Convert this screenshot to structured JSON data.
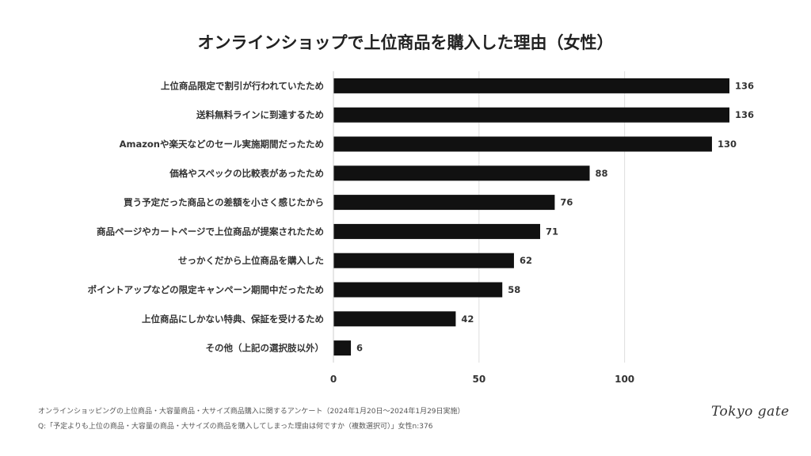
{
  "chart_data": {
    "type": "bar",
    "orientation": "horizontal",
    "title": "オンラインショップで上位商品を購入した理由（女性）",
    "categories": [
      "上位商品限定で割引が行われていたため",
      "送料無料ラインに到達するため",
      "Amazonや楽天などのセール実施期間だったため",
      "価格やスペックの比較表があったため",
      "買う予定だった商品との差額を小さく感じたから",
      "商品ページやカートページで上位商品が提案されたため",
      "せっかくだから上位商品を購入した",
      "ポイントアップなどの限定キャンペーン期間中だったため",
      "上位商品にしかない特典、保証を受けるため",
      "その他（上記の選択肢以外）"
    ],
    "values": [
      136,
      136,
      130,
      88,
      76,
      71,
      62,
      58,
      42,
      6
    ],
    "xticks": [
      "0",
      "50",
      "100"
    ],
    "xlim": [
      0,
      136
    ],
    "grid": true,
    "bar_color": "#111111",
    "grid_color": "#dddddd"
  },
  "footer": {
    "source": "オンラインショッピングの上位商品・大容量商品・大サイズ商品購入に関するアンケート（2024年1月20日〜2024年1月29日実施）",
    "question": "Q:「予定よりも上位の商品・大容量の商品・大サイズの商品を購入してしまった理由は何ですか（複数選択可）」女性n:376"
  },
  "logo": "Tokyo gate"
}
